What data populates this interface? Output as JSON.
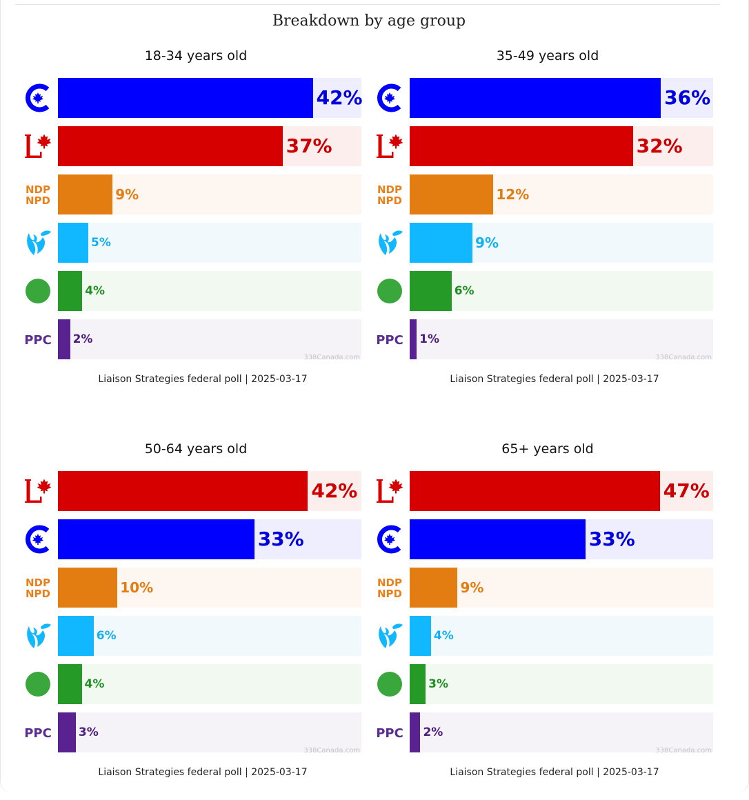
{
  "title": "Breakdown by age group",
  "watermark": "338Canada.com",
  "parties": {
    "CPC": {
      "bar": "#0000ff",
      "bg": "#eeeeff",
      "text": "#0000dd",
      "icon": "conservative-c-maple-icon"
    },
    "LPC": {
      "bar": "#d60000",
      "bg": "#fdeeee",
      "text": "#cc0000",
      "icon": "liberal-l-maple-icon"
    },
    "NDP": {
      "bar": "#e37d12",
      "bg": "#fdf6f1",
      "text": "#e37d12",
      "icon": "ndp-npd-wordmark-icon",
      "logo_lines": [
        "NDP",
        "NPD"
      ]
    },
    "BQ": {
      "bar": "#12b8ff",
      "bg": "#f1f9fd",
      "text": "#12b0f0",
      "icon": "bloc-fleur-de-lis-icon"
    },
    "GPC": {
      "bar": "#269a27",
      "bg": "#f2f9f1",
      "text": "#1f8f22",
      "icon": "green-circle-icon"
    },
    "PPC": {
      "bar": "#5a2191",
      "bg": "#f5f2f8",
      "text": "#4b1d7c",
      "icon": "ppc-wordmark-icon",
      "logo_text": "PPC"
    }
  },
  "chart_data": [
    {
      "type": "bar",
      "orientation": "horizontal",
      "title": "18-34 years old",
      "categories": [
        "CPC",
        "LPC",
        "NDP",
        "BQ",
        "GPC",
        "PPC"
      ],
      "values": [
        42,
        37,
        9,
        5,
        4,
        2
      ],
      "labels": [
        "42%",
        "37%",
        "9%",
        "5%",
        "4%",
        "2%"
      ],
      "xlim": [
        0,
        50
      ],
      "source": "Liaison Strategies federal poll | 2025-03-17"
    },
    {
      "type": "bar",
      "orientation": "horizontal",
      "title": "35-49 years old",
      "categories": [
        "CPC",
        "LPC",
        "NDP",
        "BQ",
        "GPC",
        "PPC"
      ],
      "values": [
        36,
        32,
        12,
        9,
        6,
        1
      ],
      "labels": [
        "36%",
        "32%",
        "12%",
        "9%",
        "6%",
        "1%"
      ],
      "xlim": [
        0,
        43.5
      ],
      "source": "Liaison Strategies federal poll | 2025-03-17"
    },
    {
      "type": "bar",
      "orientation": "horizontal",
      "title": "50-64 years old",
      "categories": [
        "LPC",
        "CPC",
        "NDP",
        "BQ",
        "GPC",
        "PPC"
      ],
      "values": [
        42,
        33,
        10,
        6,
        4,
        3
      ],
      "labels": [
        "42%",
        "33%",
        "10%",
        "6%",
        "4%",
        "3%"
      ],
      "xlim": [
        0,
        51
      ],
      "source": "Liaison Strategies federal poll | 2025-03-17"
    },
    {
      "type": "bar",
      "orientation": "horizontal",
      "title": "65+ years old",
      "categories": [
        "LPC",
        "CPC",
        "NDP",
        "BQ",
        "GPC",
        "PPC"
      ],
      "values": [
        47,
        33,
        9,
        4,
        3,
        2
      ],
      "labels": [
        "47%",
        "33%",
        "9%",
        "4%",
        "3%",
        "2%"
      ],
      "xlim": [
        0,
        57
      ],
      "source": "Liaison Strategies federal poll | 2025-03-17"
    }
  ]
}
